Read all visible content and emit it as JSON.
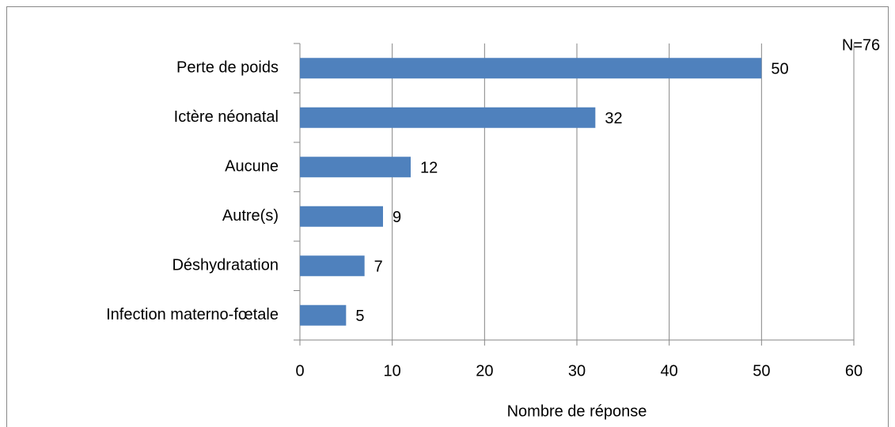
{
  "chart_data": {
    "type": "bar",
    "orientation": "horizontal",
    "categories": [
      "Perte de poids",
      "Ictère néonatal",
      "Aucune",
      "Autre(s)",
      "Déshydratation",
      "Infection materno-fœtale"
    ],
    "values": [
      50,
      32,
      12,
      9,
      7,
      5
    ],
    "color": "#4f81bd",
    "xlim": [
      0,
      60
    ],
    "xticks": [
      0,
      10,
      20,
      30,
      40,
      50,
      60
    ],
    "grid": true,
    "x_label": "Nombre de réponse",
    "annotation": "N=76"
  }
}
